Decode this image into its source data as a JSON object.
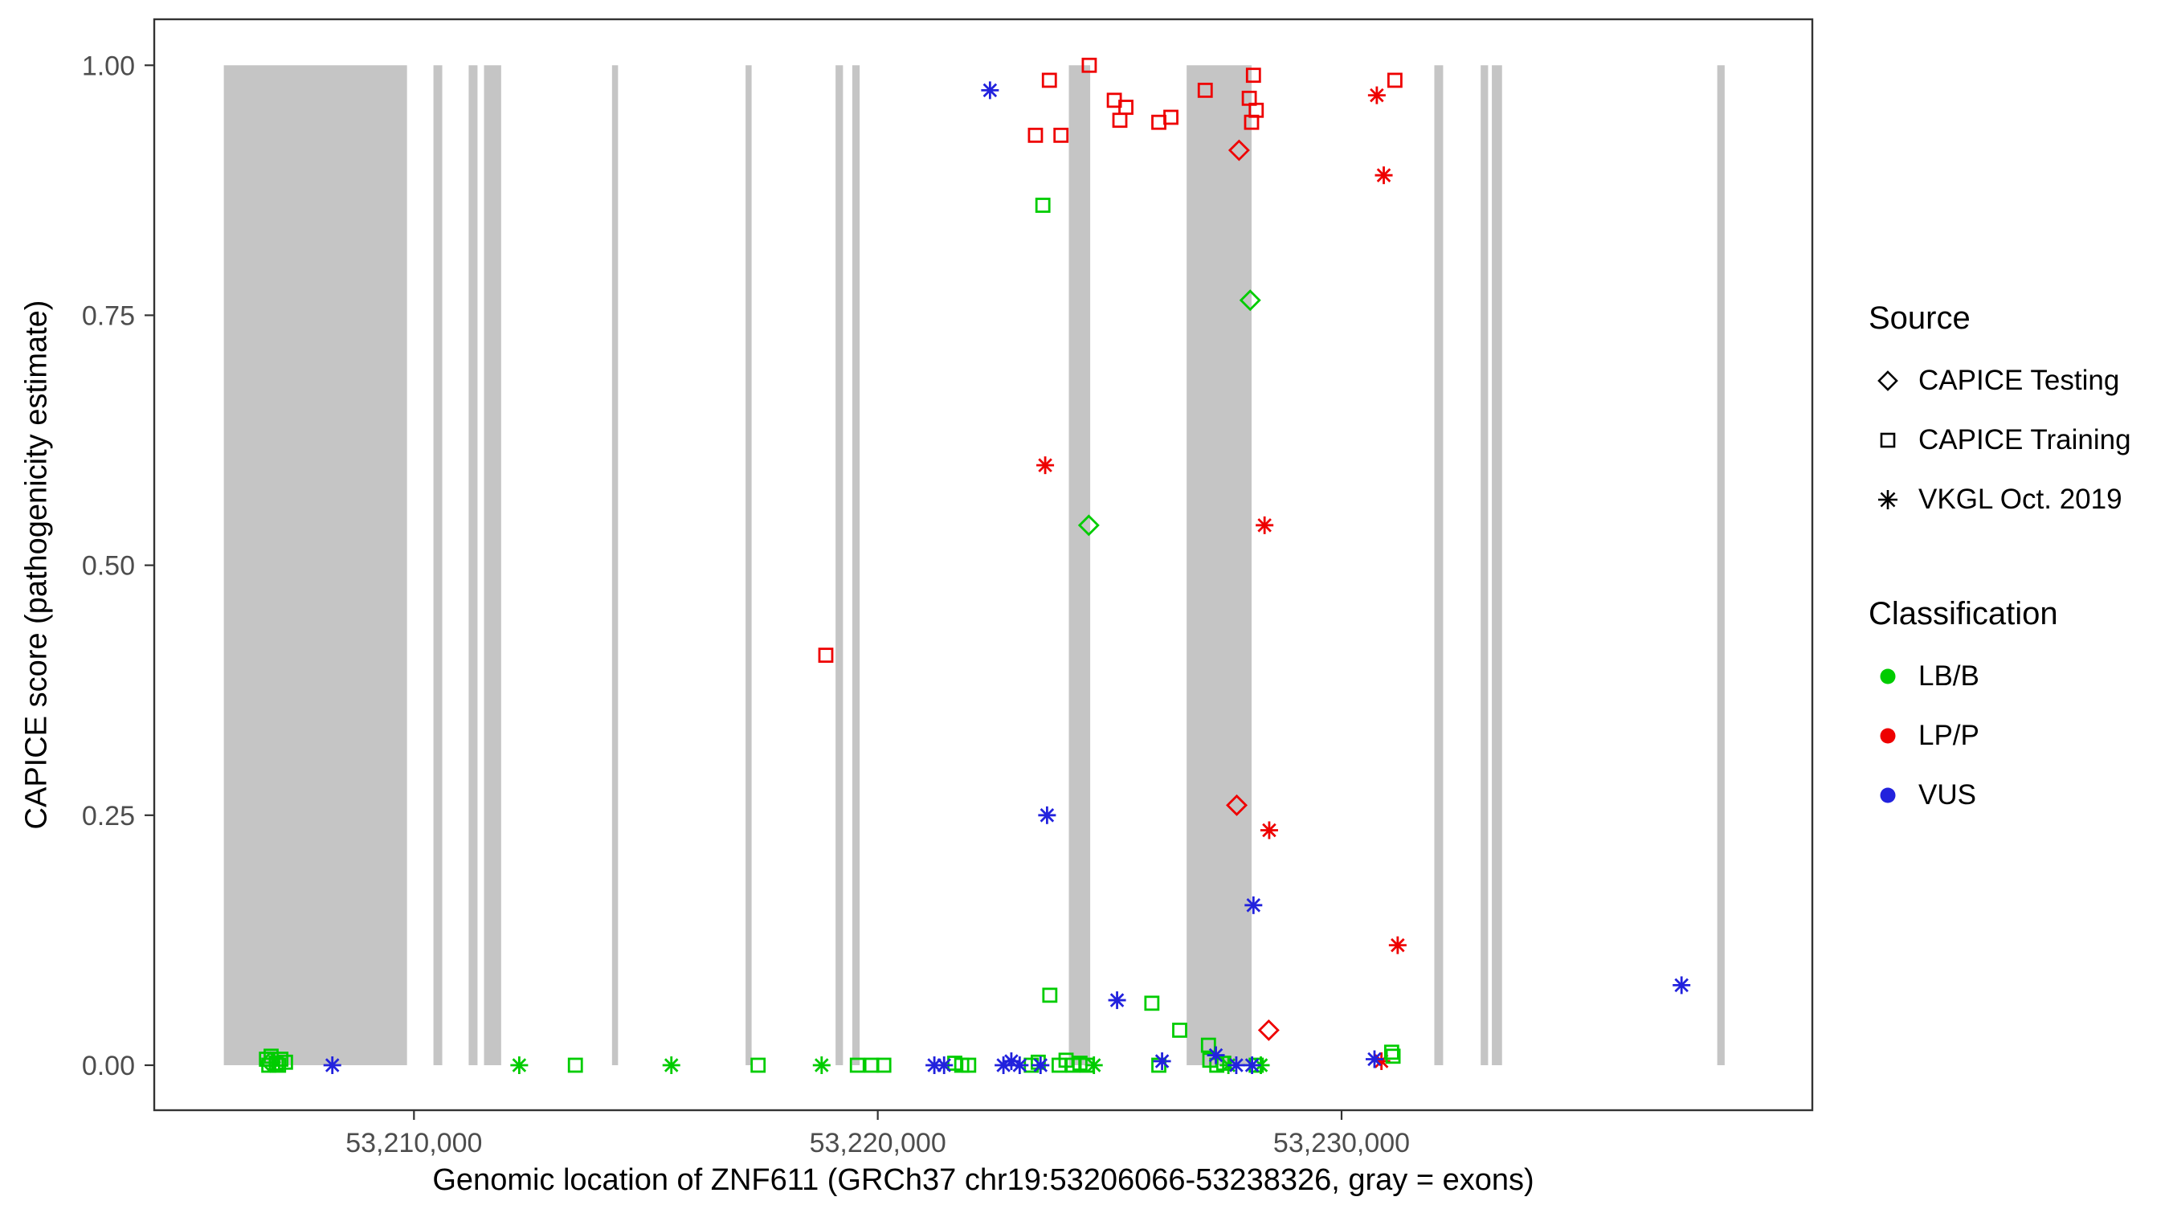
{
  "chart_data": {
    "type": "scatter",
    "title": "",
    "xlabel": "Genomic location of ZNF611 (GRCh37 chr19:53206066-53238326, gray = exons)",
    "ylabel": "CAPICE score (pathogenicity estimate)",
    "xlim": [
      53204400,
      53240150
    ],
    "ylim": [
      -0.045,
      1.046
    ],
    "grid": false,
    "legend_position": "right",
    "x_ticks": [
      {
        "value": 53210000,
        "label": "53,210,000"
      },
      {
        "value": 53220000,
        "label": "53,220,000"
      },
      {
        "value": 53230000,
        "label": "53,230,000"
      }
    ],
    "y_ticks": [
      {
        "value": 0.0,
        "label": "0.00"
      },
      {
        "value": 0.25,
        "label": "0.25"
      },
      {
        "value": 0.5,
        "label": "0.50"
      },
      {
        "value": 0.75,
        "label": "0.75"
      },
      {
        "value": 1.0,
        "label": "1.00"
      }
    ],
    "exon_color": "#c5c5c5",
    "exons": [
      [
        53205900,
        53209850
      ],
      [
        53210420,
        53210610
      ],
      [
        53211180,
        53211370
      ],
      [
        53211510,
        53211880
      ],
      [
        53214270,
        53214400
      ],
      [
        53217150,
        53217280
      ],
      [
        53219090,
        53219250
      ],
      [
        53219450,
        53219610
      ],
      [
        53224120,
        53224580
      ],
      [
        53226660,
        53228060
      ],
      [
        53232000,
        53232190
      ],
      [
        53233000,
        53233160
      ],
      [
        53233240,
        53233460
      ],
      [
        53238100,
        53238260
      ]
    ],
    "colors": {
      "LB/B": "#00cc00",
      "LP/P": "#ee0000",
      "VUS": "#2222dd"
    },
    "shape_meaning": {
      "diamond": "CAPICE Testing",
      "square": "CAPICE Training",
      "asterisk": "VKGL Oct. 2019"
    },
    "points": [
      [
        53223400,
        0.93,
        "square",
        "LP/P"
      ],
      [
        53223950,
        0.93,
        "square",
        "LP/P"
      ],
      [
        53223700,
        0.985,
        "square",
        "LP/P"
      ],
      [
        53224560,
        1.0,
        "square",
        "LP/P"
      ],
      [
        53225100,
        0.965,
        "square",
        "LP/P"
      ],
      [
        53225350,
        0.958,
        "square",
        "LP/P"
      ],
      [
        53225220,
        0.945,
        "square",
        "LP/P"
      ],
      [
        53226060,
        0.943,
        "square",
        "LP/P"
      ],
      [
        53226320,
        0.948,
        "square",
        "LP/P"
      ],
      [
        53227060,
        0.975,
        "square",
        "LP/P"
      ],
      [
        53228100,
        0.99,
        "square",
        "LP/P"
      ],
      [
        53228010,
        0.967,
        "square",
        "LP/P"
      ],
      [
        53228160,
        0.955,
        "square",
        "LP/P"
      ],
      [
        53228060,
        0.943,
        "square",
        "LP/P"
      ],
      [
        53231150,
        0.985,
        "square",
        "LP/P"
      ],
      [
        53218880,
        0.41,
        "square",
        "LP/P"
      ],
      [
        53227790,
        0.915,
        "diamond",
        "LP/P"
      ],
      [
        53227740,
        0.26,
        "diamond",
        "LP/P"
      ],
      [
        53228430,
        0.035,
        "diamond",
        "LP/P"
      ],
      [
        53223610,
        0.6,
        "asterisk",
        "LP/P"
      ],
      [
        53228340,
        0.54,
        "asterisk",
        "LP/P"
      ],
      [
        53230760,
        0.97,
        "asterisk",
        "LP/P"
      ],
      [
        53230910,
        0.89,
        "asterisk",
        "LP/P"
      ],
      [
        53228440,
        0.235,
        "asterisk",
        "LP/P"
      ],
      [
        53231210,
        0.12,
        "asterisk",
        "LP/P"
      ],
      [
        53230860,
        0.004,
        "asterisk",
        "LP/P"
      ],
      [
        53223560,
        0.86,
        "square",
        "LB/B"
      ],
      [
        53223710,
        0.07,
        "square",
        "LB/B"
      ],
      [
        53225910,
        0.062,
        "square",
        "LB/B"
      ],
      [
        53226510,
        0.035,
        "square",
        "LB/B"
      ],
      [
        53227130,
        0.02,
        "square",
        "LB/B"
      ],
      [
        53231080,
        0.013,
        "square",
        "LB/B"
      ],
      [
        53206820,
        0.006,
        "square",
        "LB/B"
      ],
      [
        53206920,
        0.009,
        "square",
        "LB/B"
      ],
      [
        53207030,
        0.002,
        "square",
        "LB/B"
      ],
      [
        53207130,
        0.006,
        "square",
        "LB/B"
      ],
      [
        53206870,
        0.0,
        "square",
        "LB/B"
      ],
      [
        53207080,
        0.0,
        "square",
        "LB/B"
      ],
      [
        53207230,
        0.003,
        "square",
        "LB/B"
      ],
      [
        53213480,
        0.0,
        "square",
        "LB/B"
      ],
      [
        53217420,
        0.0,
        "square",
        "LB/B"
      ],
      [
        53219560,
        0.0,
        "square",
        "LB/B"
      ],
      [
        53219870,
        0.0,
        "square",
        "LB/B"
      ],
      [
        53220130,
        0.0,
        "square",
        "LB/B"
      ],
      [
        53221660,
        0.002,
        "square",
        "LB/B"
      ],
      [
        53221810,
        0.0,
        "square",
        "LB/B"
      ],
      [
        53221960,
        0.0,
        "square",
        "LB/B"
      ],
      [
        53223310,
        0.0,
        "square",
        "LB/B"
      ],
      [
        53223460,
        0.003,
        "square",
        "LB/B"
      ],
      [
        53223910,
        0.0,
        "square",
        "LB/B"
      ],
      [
        53224060,
        0.005,
        "square",
        "LB/B"
      ],
      [
        53224210,
        0.0,
        "square",
        "LB/B"
      ],
      [
        53224360,
        0.002,
        "square",
        "LB/B"
      ],
      [
        53224510,
        0.0,
        "square",
        "LB/B"
      ],
      [
        53226060,
        0.0,
        "square",
        "LB/B"
      ],
      [
        53227160,
        0.005,
        "square",
        "LB/B"
      ],
      [
        53227310,
        0.0,
        "square",
        "LB/B"
      ],
      [
        53227460,
        0.002,
        "square",
        "LB/B"
      ],
      [
        53228160,
        0.0,
        "square",
        "LB/B"
      ],
      [
        53231110,
        0.009,
        "square",
        "LB/B"
      ],
      [
        53224550,
        0.54,
        "diamond",
        "LB/B"
      ],
      [
        53228030,
        0.765,
        "diamond",
        "LB/B"
      ],
      [
        53206900,
        0.003,
        "diamond",
        "LB/B"
      ],
      [
        53212270,
        0.0,
        "asterisk",
        "LB/B"
      ],
      [
        53215550,
        0.0,
        "asterisk",
        "LB/B"
      ],
      [
        53218790,
        0.0,
        "asterisk",
        "LB/B"
      ],
      [
        53224660,
        0.0,
        "asterisk",
        "LB/B"
      ],
      [
        53227560,
        0.0,
        "asterisk",
        "LB/B"
      ],
      [
        53228260,
        0.0,
        "asterisk",
        "LB/B"
      ],
      [
        53222420,
        0.975,
        "asterisk",
        "VUS"
      ],
      [
        53223650,
        0.25,
        "asterisk",
        "VUS"
      ],
      [
        53228100,
        0.16,
        "asterisk",
        "VUS"
      ],
      [
        53225160,
        0.065,
        "asterisk",
        "VUS"
      ],
      [
        53237330,
        0.08,
        "asterisk",
        "VUS"
      ],
      [
        53208240,
        0.0,
        "asterisk",
        "VUS"
      ],
      [
        53221220,
        0.0,
        "asterisk",
        "VUS"
      ],
      [
        53221430,
        0.0,
        "asterisk",
        "VUS"
      ],
      [
        53222710,
        0.0,
        "asterisk",
        "VUS"
      ],
      [
        53222880,
        0.004,
        "asterisk",
        "VUS"
      ],
      [
        53223060,
        0.0,
        "asterisk",
        "VUS"
      ],
      [
        53223510,
        0.0,
        "asterisk",
        "VUS"
      ],
      [
        53226130,
        0.004,
        "asterisk",
        "VUS"
      ],
      [
        53227290,
        0.01,
        "asterisk",
        "VUS"
      ],
      [
        53227730,
        0.0,
        "asterisk",
        "VUS"
      ],
      [
        53228070,
        0.0,
        "asterisk",
        "VUS"
      ],
      [
        53230710,
        0.006,
        "asterisk",
        "VUS"
      ]
    ]
  },
  "legend": {
    "source": {
      "title": "Source",
      "items": [
        {
          "label": "CAPICE Testing",
          "shape": "diamond"
        },
        {
          "label": "CAPICE Training",
          "shape": "square"
        },
        {
          "label": "VKGL Oct. 2019",
          "shape": "asterisk"
        }
      ]
    },
    "classification": {
      "title": "Classification",
      "items": [
        {
          "label": "LB/B",
          "color": "#00cc00"
        },
        {
          "label": "LP/P",
          "color": "#ee0000"
        },
        {
          "label": "VUS",
          "color": "#2222dd"
        }
      ]
    }
  }
}
